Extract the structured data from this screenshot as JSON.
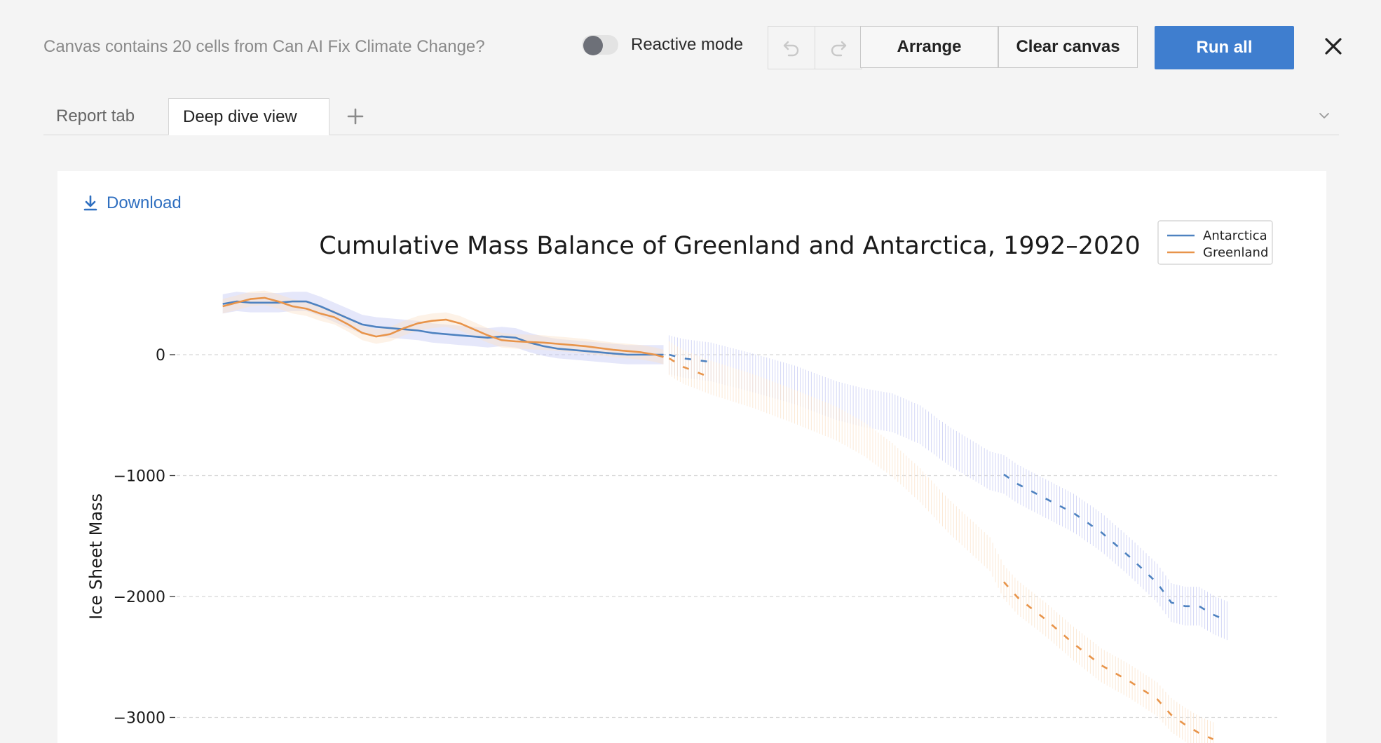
{
  "toolbar": {
    "canvas_info": "Canvas contains 20 cells from Can AI Fix Climate Change?",
    "reactive_mode_label": "Reactive mode",
    "reactive_mode_on": false,
    "arrange_label": "Arrange",
    "clear_label": "Clear canvas",
    "run_label": "Run all",
    "accent_color": "#3f7ecf"
  },
  "tabs": [
    {
      "label": "Report tab",
      "active": false
    },
    {
      "label": "Deep dive view",
      "active": true
    }
  ],
  "panel": {
    "download_label": "Download"
  },
  "chart_data": {
    "type": "line",
    "title": "Cumulative Mass Balance of Greenland and Antarctica, 1992–2020",
    "xlabel": "",
    "ylabel": "Ice Sheet Mass",
    "ylim": [
      -3180,
      520
    ],
    "yticks": [
      0,
      -1000,
      -2000,
      -3000
    ],
    "ytick_labels": [
      "0",
      "−1000",
      "−2000",
      "−3000"
    ],
    "grid": "horizontal dashed",
    "legend_position": "top-right",
    "series": [
      {
        "name": "Antarctica",
        "color": "#4e82c0",
        "band_color": "#c5c9f3",
        "observed": [
          [
            1992.0,
            420
          ],
          [
            1992.5,
            440
          ],
          [
            1993.0,
            430
          ],
          [
            1993.5,
            430
          ],
          [
            1994.0,
            430
          ],
          [
            1994.5,
            440
          ],
          [
            1995.0,
            440
          ],
          [
            1995.5,
            400
          ],
          [
            1996.0,
            350
          ],
          [
            1996.5,
            300
          ],
          [
            1997.0,
            250
          ],
          [
            1997.5,
            230
          ],
          [
            1998.0,
            220
          ],
          [
            1998.5,
            210
          ],
          [
            1999.0,
            200
          ],
          [
            1999.5,
            180
          ],
          [
            2000.0,
            170
          ],
          [
            2000.5,
            160
          ],
          [
            2001.0,
            150
          ],
          [
            2001.5,
            140
          ],
          [
            2002.0,
            150
          ],
          [
            2002.5,
            140
          ],
          [
            2003.0,
            100
          ],
          [
            2003.5,
            70
          ],
          [
            2004.0,
            50
          ],
          [
            2004.5,
            40
          ],
          [
            2005.0,
            30
          ],
          [
            2005.5,
            20
          ],
          [
            2006.0,
            10
          ],
          [
            2006.5,
            0
          ],
          [
            2007.0,
            0
          ],
          [
            2007.5,
            0
          ],
          [
            2007.8,
            0
          ]
        ],
        "observed_band": 80,
        "projected": [
          [
            2008.0,
            0
          ],
          [
            2008.5,
            -30
          ],
          [
            2009.5,
            -60
          ],
          [
            2011.0,
            -150
          ],
          [
            2012.5,
            -250
          ],
          [
            2014.0,
            -380
          ],
          [
            2015.0,
            -440
          ],
          [
            2016.0,
            -480
          ],
          [
            2017.0,
            -580
          ],
          [
            2018.0,
            -750
          ],
          [
            2019.5,
            -960
          ],
          [
            2020.0,
            -990
          ],
          [
            2020.5,
            -1070
          ],
          [
            2021.5,
            -1190
          ],
          [
            2022.5,
            -1310
          ],
          [
            2023.5,
            -1470
          ],
          [
            2024.5,
            -1670
          ],
          [
            2025.5,
            -1890
          ],
          [
            2026.0,
            -2050
          ],
          [
            2026.5,
            -2080
          ],
          [
            2027.0,
            -2080
          ],
          [
            2027.5,
            -2150
          ],
          [
            2028.0,
            -2200
          ]
        ],
        "projected_band": 160,
        "dashed_from": 2020.0
      },
      {
        "name": "Greenland",
        "color": "#e8944a",
        "band_color": "#fbe3c9",
        "observed": [
          [
            1992.0,
            400
          ],
          [
            1992.5,
            430
          ],
          [
            1993.0,
            460
          ],
          [
            1993.5,
            470
          ],
          [
            1994.0,
            440
          ],
          [
            1994.5,
            400
          ],
          [
            1995.0,
            380
          ],
          [
            1995.5,
            340
          ],
          [
            1996.0,
            310
          ],
          [
            1996.5,
            250
          ],
          [
            1997.0,
            180
          ],
          [
            1997.5,
            150
          ],
          [
            1998.0,
            170
          ],
          [
            1998.5,
            220
          ],
          [
            1999.0,
            260
          ],
          [
            1999.5,
            280
          ],
          [
            2000.0,
            290
          ],
          [
            2000.5,
            260
          ],
          [
            2001.0,
            210
          ],
          [
            2001.5,
            160
          ],
          [
            2002.0,
            120
          ],
          [
            2002.5,
            110
          ],
          [
            2003.0,
            105
          ],
          [
            2003.5,
            100
          ],
          [
            2004.0,
            90
          ],
          [
            2004.5,
            80
          ],
          [
            2005.0,
            70
          ],
          [
            2005.5,
            55
          ],
          [
            2006.0,
            40
          ],
          [
            2006.5,
            30
          ],
          [
            2007.0,
            20
          ],
          [
            2007.5,
            0
          ],
          [
            2007.8,
            -20
          ]
        ],
        "observed_band": 60,
        "projected": [
          [
            2008.0,
            -30
          ],
          [
            2008.5,
            -100
          ],
          [
            2009.5,
            -190
          ],
          [
            2011.0,
            -300
          ],
          [
            2012.5,
            -430
          ],
          [
            2014.0,
            -570
          ],
          [
            2015.0,
            -700
          ],
          [
            2016.0,
            -870
          ],
          [
            2017.0,
            -1080
          ],
          [
            2018.0,
            -1330
          ],
          [
            2019.5,
            -1650
          ],
          [
            2020.0,
            -1880
          ],
          [
            2020.5,
            -2010
          ],
          [
            2021.5,
            -2190
          ],
          [
            2022.5,
            -2390
          ],
          [
            2023.5,
            -2570
          ],
          [
            2024.5,
            -2700
          ],
          [
            2025.5,
            -2850
          ],
          [
            2026.0,
            -2980
          ],
          [
            2026.5,
            -3060
          ],
          [
            2027.0,
            -3130
          ],
          [
            2027.5,
            -3180
          ]
        ],
        "projected_band": 140,
        "dashed_from": 2020.0
      }
    ]
  }
}
